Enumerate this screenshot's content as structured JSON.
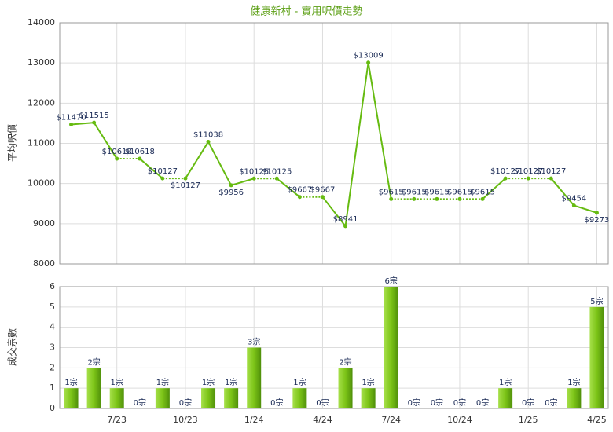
{
  "chart_data": [
    {
      "type": "line",
      "title": "健康新村 - 實用呎價走勢",
      "y_label": "平均呎價",
      "color": "#66bb11",
      "categories": [
        null,
        null,
        "7/23",
        null,
        null,
        "10/23",
        null,
        null,
        "1/24",
        null,
        null,
        "4/24",
        null,
        null,
        "7/24",
        null,
        null,
        "10/24",
        null,
        null,
        "1/25",
        null,
        null,
        "4/25"
      ],
      "values": [
        11470,
        11515,
        10618,
        10618,
        10127,
        10127,
        11038,
        9956,
        10125,
        10125,
        9667,
        9667,
        8941,
        13009,
        9615,
        9615,
        9615,
        9615,
        9615,
        10127,
        10127,
        10127,
        9454,
        9273
      ],
      "value_labels": [
        "$11470",
        "$11515",
        "$10618",
        "$10618",
        "$10127",
        "$10127",
        "$11038",
        "$9956",
        "$10125",
        "$10125",
        "$9667",
        "$9667",
        "$8941",
        "$13009",
        "$9615",
        "$9615",
        "$9615",
        "$9615",
        "$9615",
        "$10127",
        "$10127",
        "$10127",
        "$9454",
        "$9273"
      ],
      "ylim": [
        8000,
        14000
      ],
      "yticks": [
        8000,
        9000,
        10000,
        11000,
        12000,
        13000,
        14000
      ],
      "grid": true
    },
    {
      "type": "bar",
      "y_label": "成交宗數",
      "color": "#7cc417",
      "categories": [
        null,
        null,
        "7/23",
        null,
        null,
        "10/23",
        null,
        null,
        "1/24",
        null,
        null,
        "4/24",
        null,
        null,
        "7/24",
        null,
        null,
        "10/24",
        null,
        null,
        "1/25",
        null,
        null,
        "4/25"
      ],
      "values": [
        1,
        2,
        1,
        0,
        1,
        0,
        1,
        1,
        3,
        0,
        1,
        0,
        2,
        1,
        6,
        0,
        0,
        0,
        0,
        1,
        0,
        0,
        1,
        5
      ],
      "value_labels": [
        "1宗",
        "2宗",
        "1宗",
        "0宗",
        "1宗",
        "0宗",
        "1宗",
        "1宗",
        "3宗",
        "0宗",
        "1宗",
        "0宗",
        "2宗",
        "1宗",
        "6宗",
        "0宗",
        "0宗",
        "0宗",
        "0宗",
        "1宗",
        "0宗",
        "0宗",
        "1宗",
        "5宗"
      ],
      "ylim": [
        0,
        6
      ],
      "yticks": [
        0,
        1,
        2,
        3,
        4,
        5,
        6
      ],
      "grid": true
    }
  ]
}
